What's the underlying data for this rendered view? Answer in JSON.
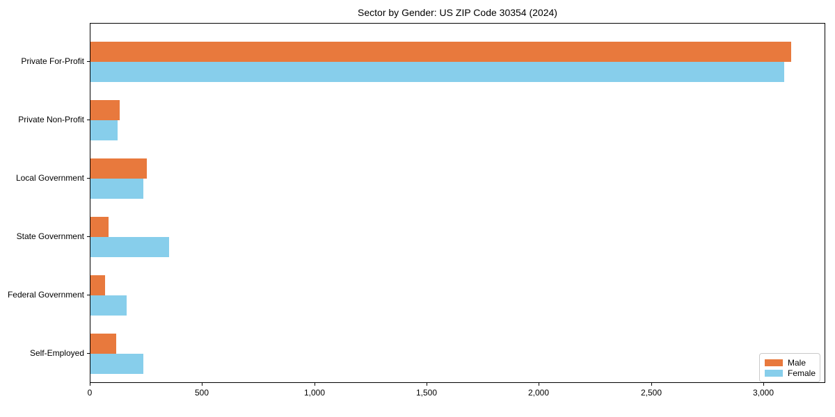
{
  "chart_data": {
    "type": "bar",
    "orientation": "horizontal",
    "title": "Sector by Gender: US ZIP Code 30354 (2024)",
    "categories": [
      "Private For-Profit",
      "Private Non-Profit",
      "Local Government",
      "State Government",
      "Federal Government",
      "Self-Employed"
    ],
    "series": [
      {
        "name": "Male",
        "color": "#e8793d",
        "values": [
          3120,
          130,
          250,
          80,
          65,
          115
        ]
      },
      {
        "name": "Female",
        "color": "#87ceeb",
        "values": [
          3090,
          120,
          235,
          350,
          160,
          235
        ]
      }
    ],
    "xlabel": "",
    "ylabel": "",
    "xlim": [
      0,
      3276
    ],
    "xticks": [
      0,
      500,
      1000,
      1500,
      2000,
      2500,
      3000
    ],
    "xtick_labels": [
      "0",
      "500",
      "1,000",
      "1,500",
      "2,000",
      "2,500",
      "3,000"
    ],
    "grid": false,
    "legend_position": "lower right",
    "background_color": "#ffffff",
    "spine_color": "#000000"
  }
}
